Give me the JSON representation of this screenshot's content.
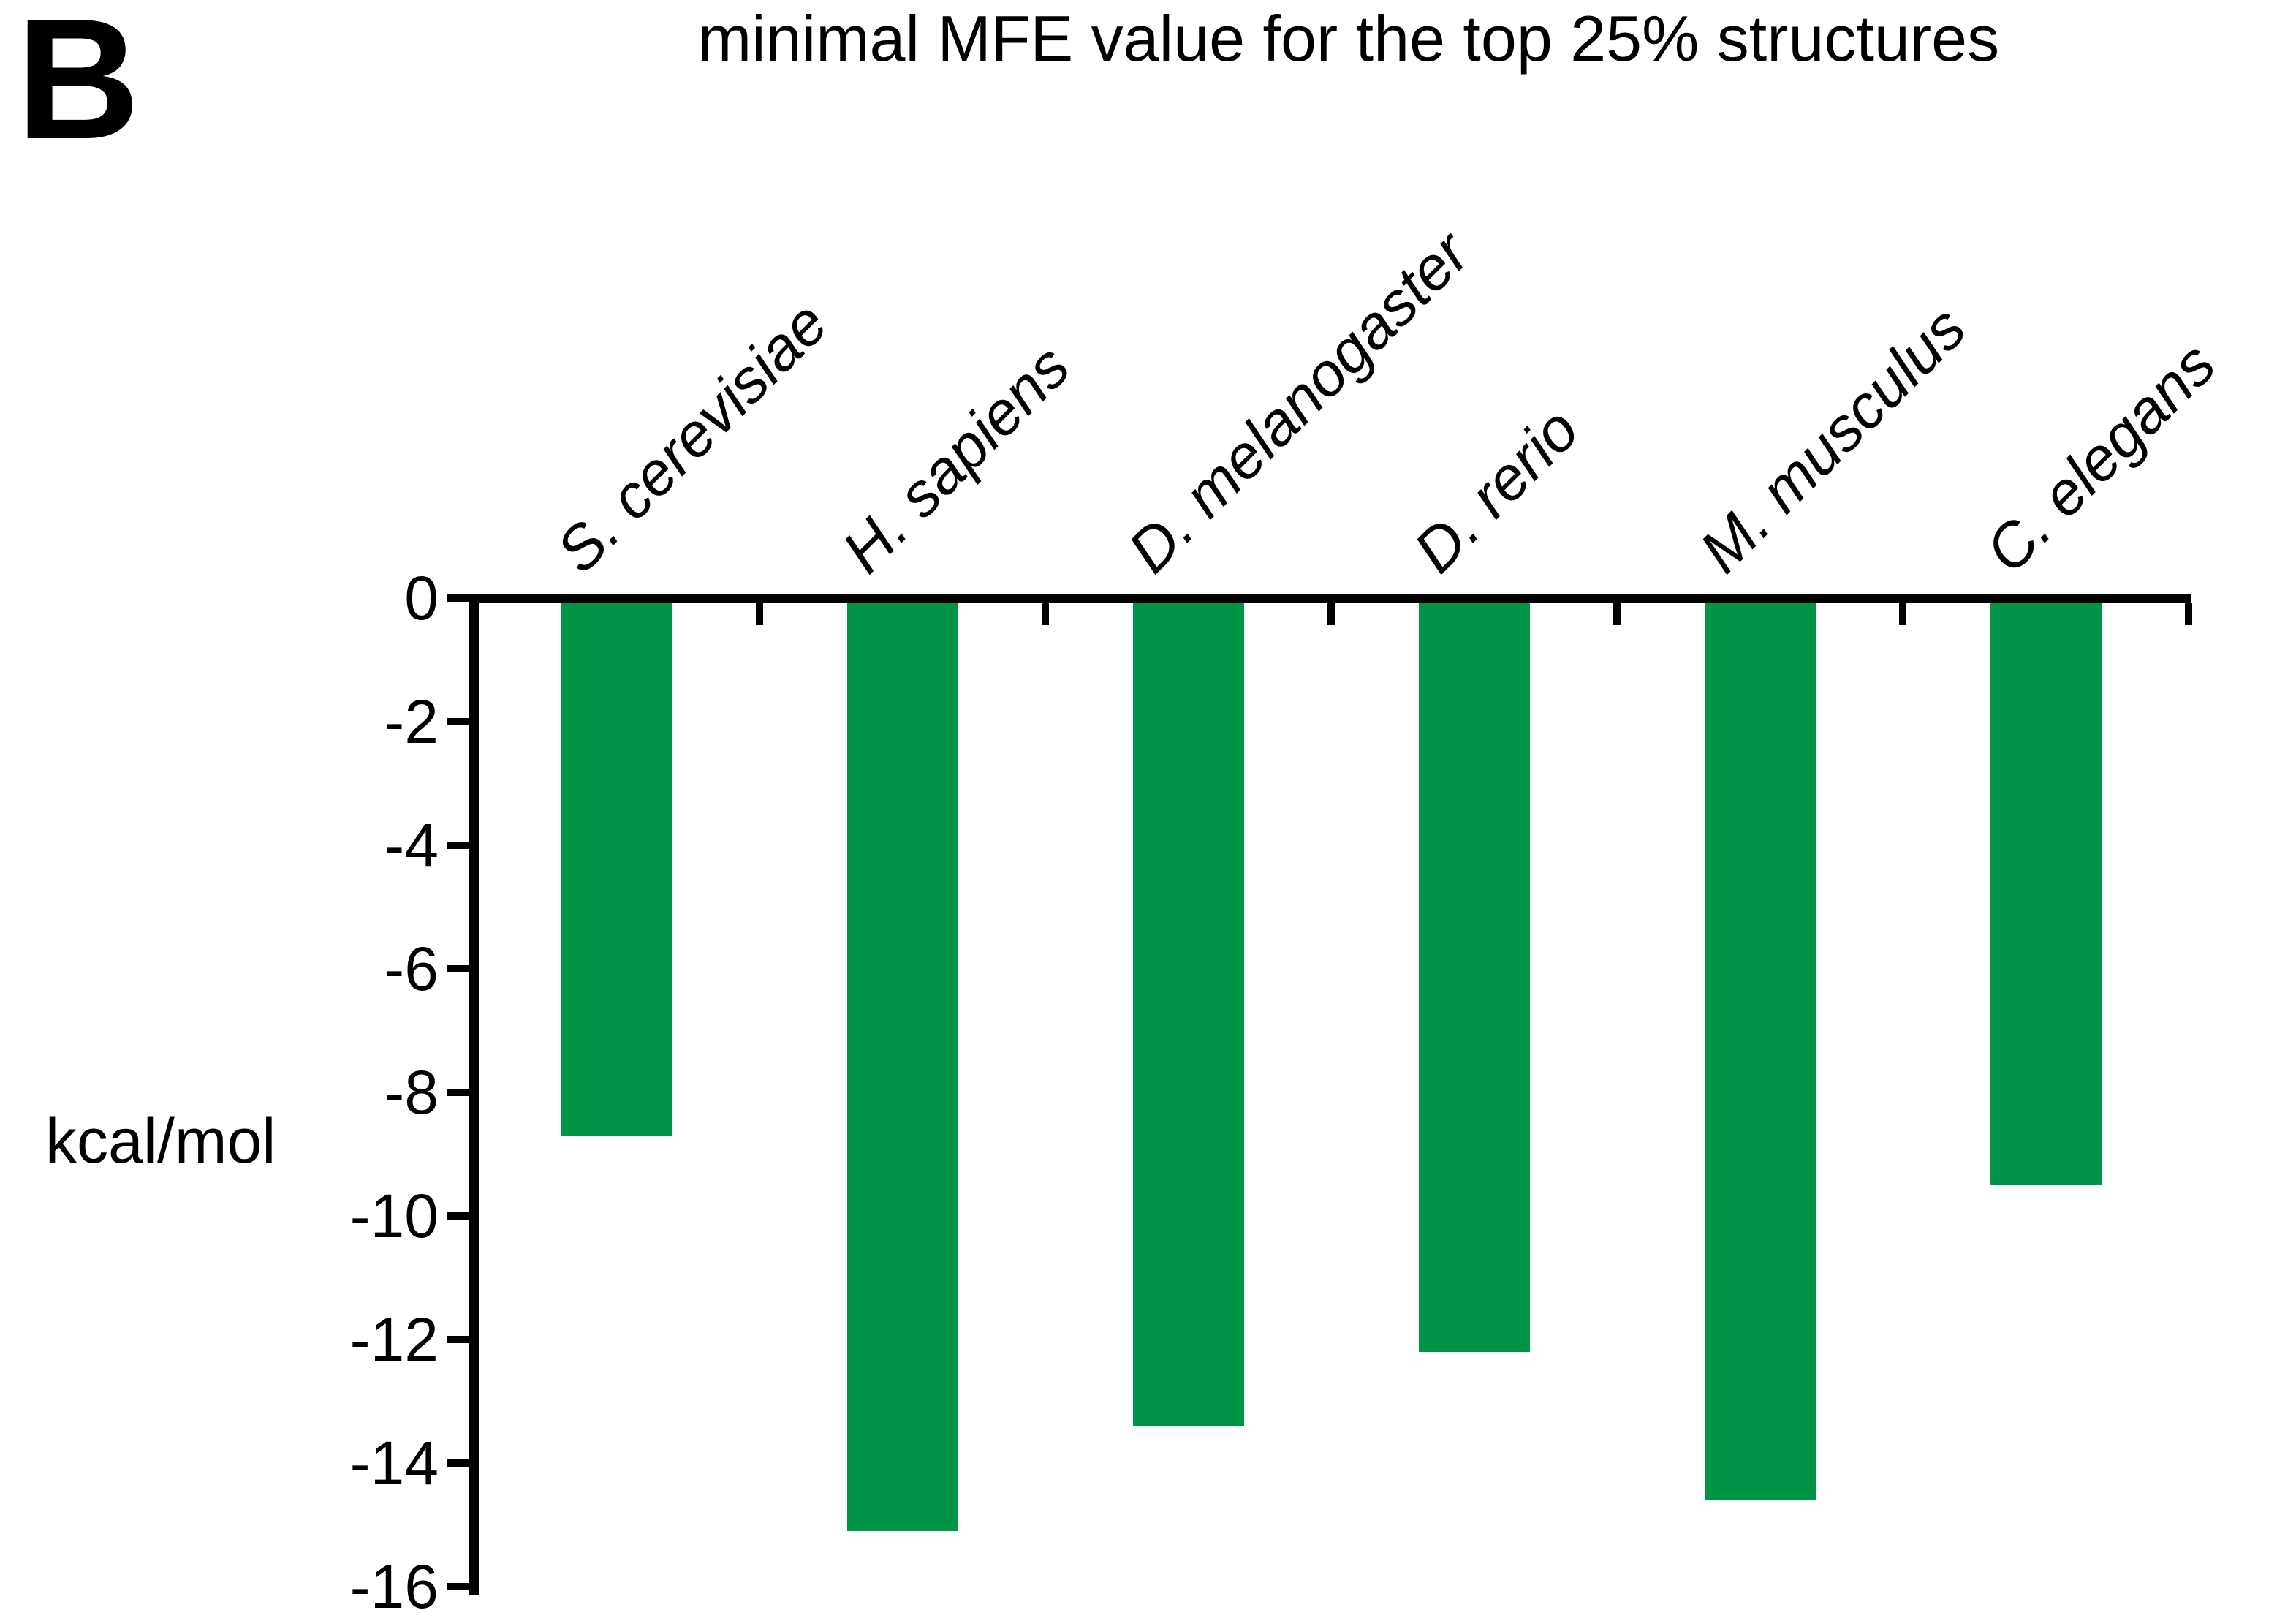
{
  "panel_label": "B",
  "title": "minimal MFE value for the top 25% structures",
  "ylabel": "kcal/mol",
  "colors": {
    "bar": "#009446",
    "axis": "#000000"
  },
  "chart_data": {
    "type": "bar",
    "title": "minimal MFE value for the top 25% structures",
    "categories": [
      "S. cerevisiae",
      "H. sapiens",
      "D. melanogaster",
      "D. rerio",
      "M. musculus",
      "C. elegans"
    ],
    "values": [
      -8.7,
      -15.1,
      -13.4,
      -12.2,
      -14.6,
      -9.5
    ],
    "xlabel": "",
    "ylabel": "kcal/mol",
    "yticks": [
      0,
      -2,
      -4,
      -6,
      -8,
      -10,
      -12,
      -14,
      -16
    ],
    "ylim": [
      -16.5,
      0
    ],
    "bar_color": "#009446",
    "category_label_style": "italic, rotated 45 degrees, above top axis",
    "legend": "none",
    "grid": "off",
    "orientation": "vertical, bars extend downward from zero baseline at top"
  }
}
